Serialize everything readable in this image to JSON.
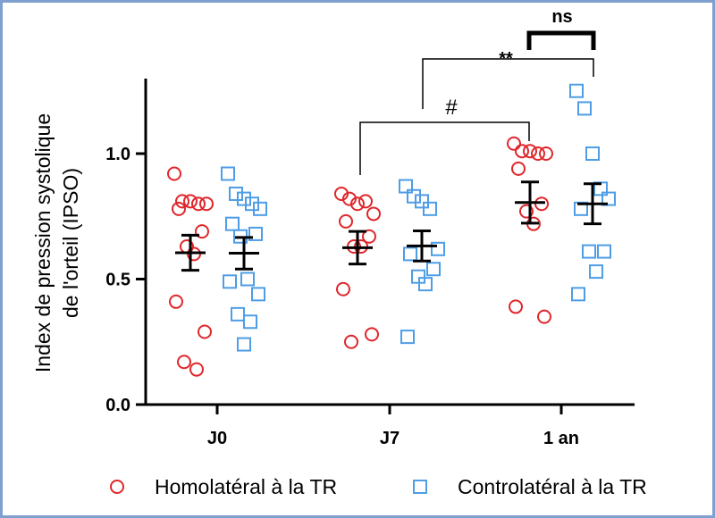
{
  "chart_data": {
    "type": "scatter",
    "ylabel_line1": "Index de pression systolique",
    "ylabel_line2": "de l'orteil (IPSO)",
    "ylim": [
      0,
      1.3
    ],
    "yticks": [
      {
        "value": 0.0,
        "label": "0.0"
      },
      {
        "value": 0.5,
        "label": "0.5"
      },
      {
        "value": 1.0,
        "label": "1.0"
      }
    ],
    "categories": [
      "J0",
      "J7",
      "1 an"
    ],
    "series": [
      {
        "name": "Homolatéral à la TR",
        "color": "#e0262b",
        "marker": "circle",
        "groups": [
          {
            "points": [
              0.92,
              0.81,
              0.81,
              0.8,
              0.8,
              0.78,
              0.69,
              0.63,
              0.6,
              0.41,
              0.29,
              0.17,
              0.14
            ],
            "mean": 0.605,
            "sem": 0.07
          },
          {
            "points": [
              0.84,
              0.82,
              0.8,
              0.81,
              0.76,
              0.73,
              0.67,
              0.63,
              0.63,
              0.46,
              0.28,
              0.25
            ],
            "mean": 0.625,
            "sem": 0.065
          },
          {
            "points": [
              1.04,
              1.01,
              1.01,
              1.0,
              1.0,
              0.94,
              0.8,
              0.77,
              0.72,
              0.39,
              0.35
            ],
            "mean": 0.805,
            "sem": 0.082
          }
        ]
      },
      {
        "name": "Controlatéral à la TR",
        "color": "#4e9de6",
        "marker": "square",
        "groups": [
          {
            "points": [
              0.92,
              0.84,
              0.82,
              0.8,
              0.78,
              0.72,
              0.68,
              0.67,
              0.5,
              0.49,
              0.44,
              0.36,
              0.33,
              0.24
            ],
            "mean": 0.603,
            "sem": 0.063
          },
          {
            "points": [
              0.87,
              0.83,
              0.81,
              0.78,
              0.62,
              0.6,
              0.54,
              0.51,
              0.48,
              0.27
            ],
            "mean": 0.632,
            "sem": 0.06
          },
          {
            "points": [
              1.25,
              1.18,
              1.0,
              0.86,
              0.82,
              0.78,
              0.61,
              0.61,
              0.53,
              0.44
            ],
            "mean": 0.8,
            "sem": 0.08
          }
        ]
      }
    ],
    "annotations": [
      {
        "label": "#",
        "from": "J7 Homolatéral",
        "to": "1 an Homolatéral"
      },
      {
        "label": "**",
        "from": "J7 Controlatéral",
        "to": "1 an Controlatéral"
      },
      {
        "label": "ns",
        "from": "1 an Homolatéral",
        "to": "1 an Controlatéral"
      }
    ],
    "legend": "bottom"
  }
}
